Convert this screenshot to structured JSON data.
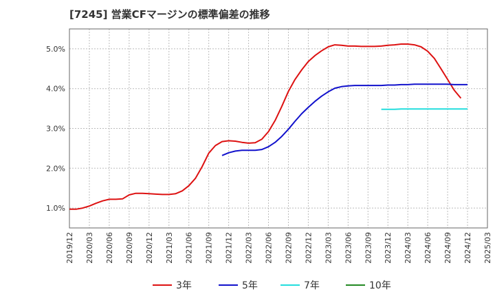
{
  "chart_data": {
    "type": "line",
    "title": "[7245]  営業CFマージンの標準偏差の推移",
    "ylim": [
      0.5,
      5.5
    ],
    "y_ticks": [
      1.0,
      2.0,
      3.0,
      4.0,
      5.0
    ],
    "y_tick_labels": [
      "1.0%",
      "2.0%",
      "3.0%",
      "4.0%",
      "5.0%"
    ],
    "x_ticks": [
      "2019/12",
      "2020/03",
      "2020/06",
      "2020/09",
      "2020/12",
      "2021/03",
      "2021/06",
      "2021/09",
      "2021/12",
      "2022/03",
      "2022/06",
      "2022/09",
      "2022/12",
      "2023/03",
      "2023/06",
      "2023/09",
      "2023/12",
      "2024/03",
      "2024/06",
      "2024/09",
      "2024/12",
      "2025/03"
    ],
    "x_range": [
      "2019/12",
      "2025/03"
    ],
    "grid": true,
    "legend_position": "bottom",
    "series": [
      {
        "name": "3年",
        "color": "#dd1111",
        "start": "2019/12",
        "values": [
          0.97,
          0.97,
          1.0,
          1.05,
          1.12,
          1.18,
          1.22,
          1.22,
          1.23,
          1.33,
          1.37,
          1.37,
          1.36,
          1.35,
          1.34,
          1.34,
          1.36,
          1.43,
          1.56,
          1.75,
          2.04,
          2.38,
          2.57,
          2.67,
          2.69,
          2.68,
          2.65,
          2.63,
          2.64,
          2.73,
          2.92,
          3.2,
          3.55,
          3.93,
          4.23,
          4.47,
          4.68,
          4.83,
          4.95,
          5.05,
          5.1,
          5.09,
          5.07,
          5.07,
          5.06,
          5.06,
          5.06,
          5.07,
          5.09,
          5.1,
          5.12,
          5.12,
          5.1,
          5.05,
          4.94,
          4.76,
          4.5,
          4.23,
          3.96,
          3.76
        ]
      },
      {
        "name": "5年",
        "color": "#1111cc",
        "start": "2021/11",
        "values": [
          2.32,
          2.39,
          2.43,
          2.45,
          2.45,
          2.45,
          2.47,
          2.54,
          2.65,
          2.8,
          2.98,
          3.18,
          3.37,
          3.53,
          3.68,
          3.81,
          3.92,
          4.01,
          4.05,
          4.07,
          4.08,
          4.08,
          4.08,
          4.08,
          4.08,
          4.09,
          4.09,
          4.1,
          4.1,
          4.11,
          4.11,
          4.11,
          4.11,
          4.11,
          4.11,
          4.1,
          4.1,
          4.1
        ]
      },
      {
        "name": "7年",
        "color": "#22dddd",
        "start": "2023/11",
        "values": [
          3.48,
          3.48,
          3.48,
          3.49,
          3.49,
          3.49,
          3.49,
          3.49,
          3.49,
          3.49,
          3.49,
          3.49,
          3.49,
          3.49
        ]
      },
      {
        "name": "10年",
        "color": "#228822",
        "start": "2024/12",
        "values": []
      }
    ]
  }
}
